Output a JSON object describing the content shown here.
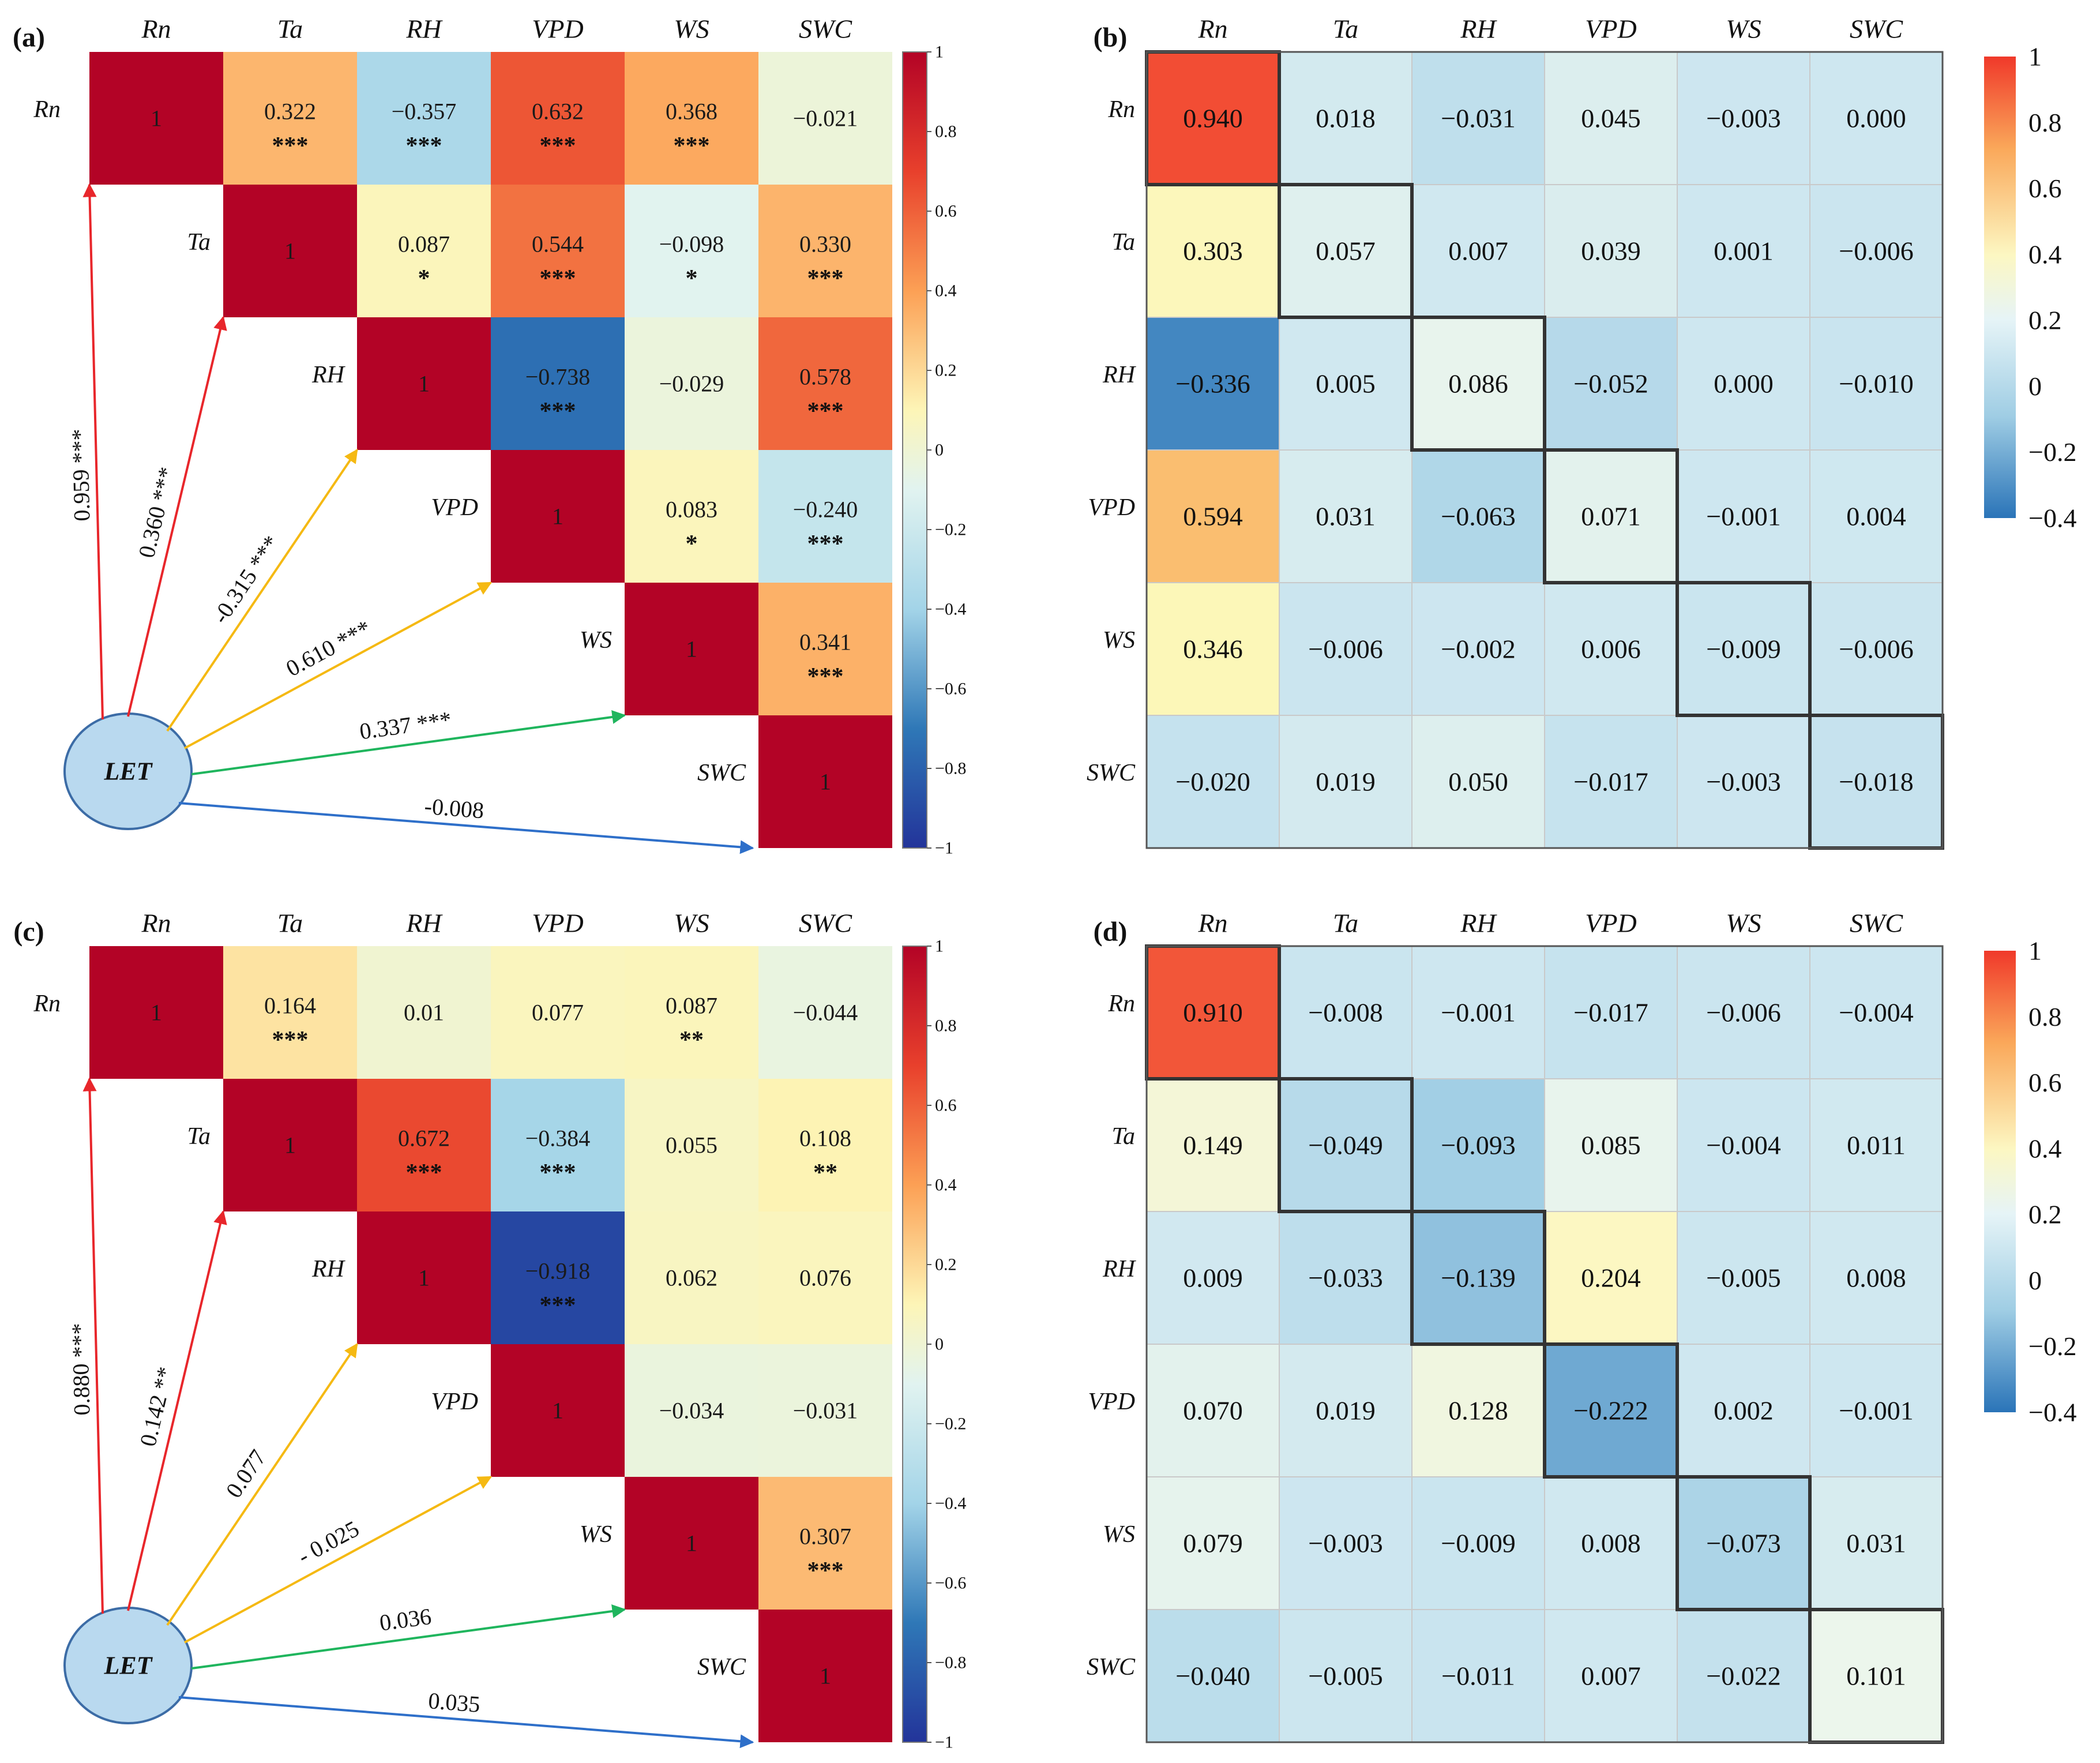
{
  "chart_data": [
    {
      "panel": "(a)",
      "type": "heatmap",
      "subtype": "pearson-correlation-upper-triangle-with-path-arrows",
      "variables": [
        "Rn",
        "Ta",
        "RH",
        "VPD",
        "WS",
        "SWC"
      ],
      "matrix": [
        [
          1,
          0.322,
          -0.357,
          0.632,
          0.368,
          -0.021
        ],
        [
          null,
          1,
          0.087,
          0.544,
          -0.098,
          0.33
        ],
        [
          null,
          null,
          1,
          -0.738,
          -0.029,
          0.578
        ],
        [
          null,
          null,
          null,
          1,
          0.083,
          -0.24
        ],
        [
          null,
          null,
          null,
          null,
          1,
          0.341
        ],
        [
          null,
          null,
          null,
          null,
          null,
          1
        ]
      ],
      "labels": [
        [
          "1",
          "0.322",
          "−0.357",
          "0.632",
          "0.368",
          "−0.021"
        ],
        [
          null,
          "1",
          "0.087",
          "0.544",
          "−0.098",
          "0.330"
        ],
        [
          null,
          null,
          "1",
          "−0.738",
          "−0.029",
          "0.578"
        ],
        [
          null,
          null,
          null,
          "1",
          "0.083",
          "−0.240"
        ],
        [
          null,
          null,
          null,
          null,
          "1",
          "0.341"
        ],
        [
          null,
          null,
          null,
          null,
          null,
          "1"
        ]
      ],
      "significance": [
        [
          "",
          "***",
          "***",
          "***",
          "***",
          ""
        ],
        [
          null,
          "",
          "*",
          "***",
          "*",
          "***"
        ],
        [
          null,
          null,
          "",
          "***",
          "",
          "***"
        ],
        [
          null,
          null,
          null,
          "",
          "*",
          "***"
        ],
        [
          null,
          null,
          null,
          null,
          "",
          "***"
        ],
        [
          null,
          null,
          null,
          null,
          null,
          ""
        ]
      ],
      "node": "LET",
      "arrows": [
        {
          "to": "Rn",
          "label": "0.959 ***",
          "color": "#e8262b"
        },
        {
          "to": "Ta",
          "label": "0.360 ***",
          "color": "#e8262b"
        },
        {
          "to": "RH",
          "label": "-0.315 ***",
          "color": "#f5b913"
        },
        {
          "to": "VPD",
          "label": "0.610 ***",
          "color": "#f5b913"
        },
        {
          "to": "WS",
          "label": "0.337 ***",
          "color": "#1fb55d"
        },
        {
          "to": "SWC",
          "label": "-0.008",
          "color": "#2e6fc9"
        }
      ],
      "colorbar": {
        "range": [
          -1,
          1
        ],
        "ticks": [
          "1",
          "0.8",
          "0.6",
          "0.4",
          "0.2",
          "0",
          "−0.2",
          "−0.4",
          "−0.6",
          "−0.8",
          "−1"
        ]
      }
    },
    {
      "panel": "(b)",
      "type": "heatmap",
      "subtype": "effect-matrix",
      "variables": [
        "Rn",
        "Ta",
        "RH",
        "VPD",
        "WS",
        "SWC"
      ],
      "matrix": [
        [
          0.94,
          0.018,
          -0.031,
          0.045,
          -0.003,
          0.0
        ],
        [
          0.303,
          0.057,
          0.007,
          0.039,
          0.001,
          -0.006
        ],
        [
          -0.336,
          0.005,
          0.086,
          -0.052,
          0.0,
          -0.01
        ],
        [
          0.594,
          0.031,
          -0.063,
          0.071,
          -0.001,
          0.004
        ],
        [
          0.346,
          -0.006,
          -0.002,
          0.006,
          -0.009,
          -0.006
        ],
        [
          -0.02,
          0.019,
          0.05,
          -0.017,
          -0.003,
          -0.018
        ]
      ],
      "labels": [
        [
          "0.940",
          "0.018",
          "−0.031",
          "0.045",
          "−0.003",
          "0.000"
        ],
        [
          "0.303",
          "0.057",
          "0.007",
          "0.039",
          "0.001",
          "−0.006"
        ],
        [
          "−0.336",
          "0.005",
          "0.086",
          "−0.052",
          "0.000",
          "−0.010"
        ],
        [
          "0.594",
          "0.031",
          "−0.063",
          "0.071",
          "−0.001",
          "0.004"
        ],
        [
          "0.346",
          "−0.006",
          "−0.002",
          "0.006",
          "−0.009",
          "−0.006"
        ],
        [
          "−0.020",
          "0.019",
          "0.050",
          "−0.017",
          "−0.003",
          "−0.018"
        ]
      ],
      "highlight": "diagonal",
      "colorbar": {
        "range": [
          -0.4,
          1
        ],
        "ticks": [
          "1",
          "0.8",
          "0.6",
          "0.4",
          "0.2",
          "0",
          "−0.2",
          "−0.4"
        ]
      }
    },
    {
      "panel": "(c)",
      "type": "heatmap",
      "subtype": "pearson-correlation-upper-triangle-with-path-arrows",
      "variables": [
        "Rn",
        "Ta",
        "RH",
        "VPD",
        "WS",
        "SWC"
      ],
      "matrix": [
        [
          1,
          0.164,
          0.01,
          0.077,
          0.087,
          -0.044
        ],
        [
          null,
          1,
          0.672,
          -0.384,
          0.055,
          0.108
        ],
        [
          null,
          null,
          1,
          -0.918,
          0.062,
          0.076
        ],
        [
          null,
          null,
          null,
          1,
          -0.034,
          -0.031
        ],
        [
          null,
          null,
          null,
          null,
          1,
          0.307
        ],
        [
          null,
          null,
          null,
          null,
          null,
          1
        ]
      ],
      "labels": [
        [
          "1",
          "0.164",
          "0.01",
          "0.077",
          "0.087",
          "−0.044"
        ],
        [
          null,
          "1",
          "0.672",
          "−0.384",
          "0.055",
          "0.108"
        ],
        [
          null,
          null,
          "1",
          "−0.918",
          "0.062",
          "0.076"
        ],
        [
          null,
          null,
          null,
          "1",
          "−0.034",
          "−0.031"
        ],
        [
          null,
          null,
          null,
          null,
          "1",
          "0.307"
        ],
        [
          null,
          null,
          null,
          null,
          null,
          "1"
        ]
      ],
      "significance": [
        [
          "",
          "***",
          "",
          "",
          "**",
          ""
        ],
        [
          null,
          "",
          "***",
          "***",
          "",
          "**"
        ],
        [
          null,
          null,
          "",
          "***",
          "",
          ""
        ],
        [
          null,
          null,
          null,
          "",
          "",
          ""
        ],
        [
          null,
          null,
          null,
          null,
          "",
          "***"
        ],
        [
          null,
          null,
          null,
          null,
          null,
          ""
        ]
      ],
      "node": "LET",
      "arrows": [
        {
          "to": "Rn",
          "label": "0.880 ***",
          "color": "#e8262b"
        },
        {
          "to": "Ta",
          "label": "0.142 **",
          "color": "#e8262b"
        },
        {
          "to": "RH",
          "label": "0.077",
          "color": "#f5b913"
        },
        {
          "to": "VPD",
          "label": "- 0.025",
          "color": "#f5b913"
        },
        {
          "to": "WS",
          "label": "0.036",
          "color": "#1fb55d"
        },
        {
          "to": "SWC",
          "label": "0.035",
          "color": "#2e6fc9"
        }
      ],
      "colorbar": {
        "range": [
          -1,
          1
        ],
        "ticks": [
          "1",
          "0.8",
          "0.6",
          "0.4",
          "0.2",
          "0",
          "−0.2",
          "−0.4",
          "−0.6",
          "−0.8",
          "−1"
        ]
      }
    },
    {
      "panel": "(d)",
      "type": "heatmap",
      "subtype": "effect-matrix",
      "variables": [
        "Rn",
        "Ta",
        "RH",
        "VPD",
        "WS",
        "SWC"
      ],
      "matrix": [
        [
          0.91,
          -0.008,
          -0.001,
          -0.017,
          -0.006,
          -0.004
        ],
        [
          0.149,
          -0.049,
          -0.093,
          0.085,
          -0.004,
          0.011
        ],
        [
          0.009,
          -0.033,
          -0.139,
          0.204,
          -0.005,
          0.008
        ],
        [
          0.07,
          0.019,
          0.128,
          -0.222,
          0.002,
          -0.001
        ],
        [
          0.079,
          -0.003,
          -0.009,
          0.008,
          -0.073,
          0.031
        ],
        [
          -0.04,
          -0.005,
          -0.011,
          0.007,
          -0.022,
          0.101
        ]
      ],
      "labels": [
        [
          "0.910",
          "−0.008",
          "−0.001",
          "−0.017",
          "−0.006",
          "−0.004"
        ],
        [
          "0.149",
          "−0.049",
          "−0.093",
          "0.085",
          "−0.004",
          "0.011"
        ],
        [
          "0.009",
          "−0.033",
          "−0.139",
          "0.204",
          "−0.005",
          "0.008"
        ],
        [
          "0.070",
          "0.019",
          "0.128",
          "−0.222",
          "0.002",
          "−0.001"
        ],
        [
          "0.079",
          "−0.003",
          "−0.009",
          "0.008",
          "−0.073",
          "0.031"
        ],
        [
          "−0.040",
          "−0.005",
          "−0.011",
          "0.007",
          "−0.022",
          "0.101"
        ]
      ],
      "highlight": "diagonal",
      "colorbar": {
        "range": [
          -0.4,
          1
        ],
        "ticks": [
          "1",
          "0.8",
          "0.6",
          "0.4",
          "0.2",
          "0",
          "−0.2",
          "−0.4"
        ]
      }
    }
  ]
}
